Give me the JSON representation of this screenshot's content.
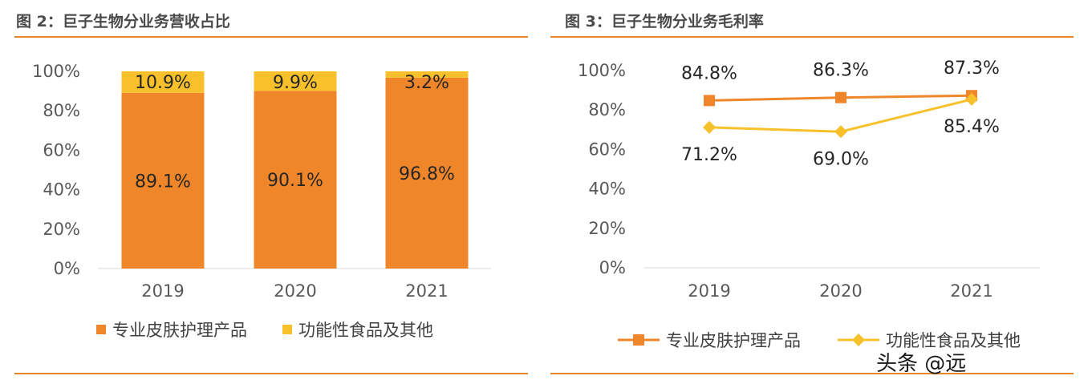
{
  "left_title": "图 2：巨子生物分业务营收占比",
  "right_title": "图 3：巨子生物分业务毛利率",
  "watermark": "头条 @远",
  "colors": {
    "accent_rule": "#e8862a",
    "series_orange": "#f0862a",
    "series_yellow": "#f8c12c"
  },
  "chart_data": [
    {
      "type": "bar",
      "stacked": true,
      "title": "图 2：巨子生物分业务营收占比",
      "categories": [
        "2019",
        "2020",
        "2021"
      ],
      "series": [
        {
          "name": "专业皮肤护理产品",
          "values": [
            89.1,
            90.1,
            96.8
          ],
          "labels": [
            "89.1%",
            "90.1%",
            "96.8%"
          ],
          "color": "#f0862a"
        },
        {
          "name": "功能性食品及其他",
          "values": [
            10.9,
            9.9,
            3.2
          ],
          "labels": [
            "10.9%",
            "9.9%",
            "3.2%"
          ],
          "color": "#f8c12c"
        }
      ],
      "ylim": [
        0,
        100
      ],
      "yticks": [
        "0%",
        "20%",
        "40%",
        "60%",
        "80%",
        "100%"
      ],
      "legend_position": "bottom"
    },
    {
      "type": "line",
      "title": "图 3：巨子生物分业务毛利率",
      "categories": [
        "2019",
        "2020",
        "2021"
      ],
      "series": [
        {
          "name": "专业皮肤护理产品",
          "values": [
            84.8,
            86.3,
            87.3
          ],
          "labels": [
            "84.8%",
            "86.3%",
            "87.3%"
          ],
          "color": "#f0862a",
          "marker": "square"
        },
        {
          "name": "功能性食品及其他",
          "values": [
            71.2,
            69.0,
            85.4
          ],
          "labels": [
            "71.2%",
            "69.0%",
            "85.4%"
          ],
          "color": "#f8c12c",
          "marker": "diamond"
        }
      ],
      "ylim": [
        0,
        100
      ],
      "yticks": [
        "0%",
        "20%",
        "40%",
        "60%",
        "80%",
        "100%"
      ],
      "legend_position": "bottom"
    }
  ]
}
